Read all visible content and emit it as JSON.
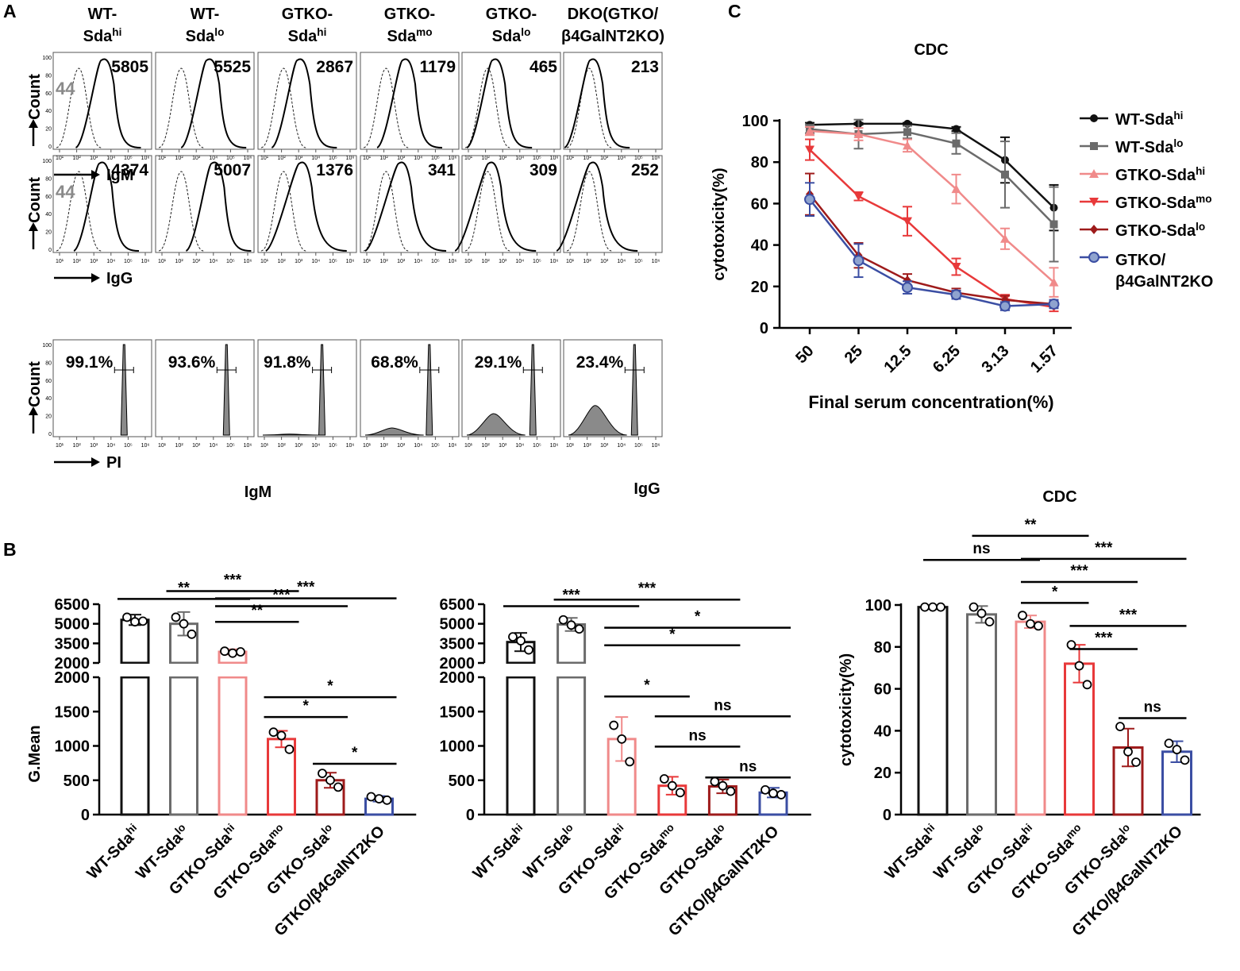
{
  "panel_labels": {
    "a": "A",
    "b": "B",
    "c": "C"
  },
  "colors": {
    "wt_hi": "#111111",
    "wt_lo": "#6b6b6b",
    "gtko_hi": "#f08a8a",
    "gtko_mo": "#e8393a",
    "gtko_lo": "#9e1b1b",
    "dko": "#3b4ea3",
    "dko_marker": "#8fa3cf",
    "histogram_fill": "#8a8a8a"
  },
  "panelA": {
    "columns": [
      {
        "line1": "WT-",
        "base": "Sda",
        "sup": "hi"
      },
      {
        "line1": "WT-",
        "base": "Sda",
        "sup": "lo"
      },
      {
        "line1": "GTKO-",
        "base": "Sda",
        "sup": "hi"
      },
      {
        "line1": "GTKO-",
        "base": "Sda",
        "sup": "mo"
      },
      {
        "line1": "GTKO-",
        "base": "Sda",
        "sup": "lo"
      },
      {
        "line1": "DKO(GTKO/",
        "base": "β4GalNT2KO)",
        "sup": ""
      }
    ],
    "rows": [
      {
        "marker": "IgM",
        "ylabel": "Count",
        "control_value": "44",
        "values": [
          "5805",
          "5525",
          "2867",
          "1179",
          "465",
          "213"
        ]
      },
      {
        "marker": "IgG",
        "ylabel": "Count",
        "control_value": "44",
        "values": [
          "4374",
          "5007",
          "1376",
          "341",
          "309",
          "252"
        ]
      },
      {
        "marker": "PI",
        "ylabel": "Count",
        "control_value": "",
        "values": [
          "99.1%",
          "93.6%",
          "91.8%",
          "68.8%",
          "29.1%",
          "23.4%"
        ]
      }
    ],
    "axis_ticks": [
      "10¹",
      "10²",
      "10³",
      "10⁴",
      "10⁵",
      "10⁶"
    ],
    "y_ticks": [
      "100",
      "80",
      "60",
      "40",
      "20",
      "0"
    ]
  },
  "chart_data": [
    {
      "id": "C",
      "type": "line",
      "title": "CDC",
      "xlabel": "Final  serum concentration(%)",
      "ylabel": "cytotoxicity(%)",
      "categories": [
        "50",
        "25",
        "12.5",
        "6.25",
        "3.13",
        "1.57"
      ],
      "ylim": [
        0,
        100
      ],
      "yticks": [
        "0",
        "20",
        "40",
        "60",
        "80",
        "100"
      ],
      "series": [
        {
          "name": "WT-Sda",
          "sup": "hi",
          "marker": "circle",
          "color": "#111111",
          "values": [
            98,
            98.5,
            98.5,
            96,
            81,
            58
          ],
          "errors": [
            1,
            0.5,
            0.5,
            1,
            11,
            11
          ]
        },
        {
          "name": "WT-Sda",
          "sup": "lo",
          "marker": "square",
          "color": "#6b6b6b",
          "values": [
            96,
            93.5,
            94.5,
            89,
            74,
            50
          ],
          "errors": [
            2,
            7,
            3,
            5,
            16,
            18
          ]
        },
        {
          "name": "GTKO-Sda",
          "sup": "hi",
          "marker": "triangle",
          "color": "#f08a8a",
          "values": [
            95,
            93.5,
            88,
            67,
            43,
            22
          ],
          "errors": [
            2,
            3,
            3,
            7,
            5,
            7
          ]
        },
        {
          "name": "GTKO-Sda",
          "sup": "mo",
          "marker": "triangle-down",
          "color": "#e8393a",
          "values": [
            86,
            63.5,
            51.5,
            29.5,
            14,
            10
          ],
          "errors": [
            5,
            2,
            7,
            4,
            2,
            2
          ]
        },
        {
          "name": "GTKO-Sda",
          "sup": "lo",
          "marker": "diamond",
          "color": "#9e1b1b",
          "values": [
            64.5,
            35,
            23,
            17,
            13.5,
            11.5
          ],
          "errors": [
            10,
            6,
            3,
            2,
            2,
            2
          ]
        },
        {
          "name": "GTKO/",
          "name2": "β4GalNT2KO",
          "sup": "",
          "marker": "circle-filled",
          "color": "#3b4ea3",
          "values": [
            62,
            32.5,
            19.5,
            16,
            10.5,
            11.5
          ],
          "errors": [
            8,
            8,
            3,
            2,
            2,
            2
          ]
        }
      ]
    },
    {
      "id": "B-IgM",
      "type": "bar",
      "title": "IgM",
      "ylabel": "G.Mean",
      "categories": [
        {
          "base": "WT-Sda",
          "sup": "hi"
        },
        {
          "base": "WT-Sda",
          "sup": "lo"
        },
        {
          "base": "GTKO-Sda",
          "sup": "hi"
        },
        {
          "base": "GTKO-Sda",
          "sup": "mo"
        },
        {
          "base": "GTKO-Sda",
          "sup": "lo"
        },
        {
          "base": "GTKO/β4GalNT2KO",
          "sup": ""
        }
      ],
      "lower_ylim": [
        0,
        2000
      ],
      "lower_ticks": [
        "0",
        "500",
        "1000",
        "1500",
        "2000"
      ],
      "upper_ylim": [
        2000,
        6500
      ],
      "upper_ticks": [
        "2000",
        "3500",
        "5000",
        "6500"
      ],
      "values": [
        5300,
        5000,
        2850,
        1100,
        500,
        230
      ],
      "errors": [
        400,
        900,
        200,
        120,
        110,
        40
      ],
      "points": [
        [
          5500,
          5150,
          5200
        ],
        [
          5500,
          5000,
          4200
        ],
        [
          2900,
          2750,
          2850
        ],
        [
          1200,
          1150,
          950
        ],
        [
          600,
          500,
          400
        ],
        [
          260,
          230,
          210
        ]
      ],
      "significance": [
        {
          "from": 0,
          "to": 2,
          "label": "**",
          "y": 6900
        },
        {
          "from": 1,
          "to": 3,
          "label": "***",
          "y": 7500
        },
        {
          "from": 2,
          "to": 5,
          "label": "***",
          "y": 6950
        },
        {
          "from": 2,
          "to": 4,
          "label": "***",
          "y": 6350
        },
        {
          "from": 2,
          "to": 3,
          "label": "**",
          "y": 5150
        },
        {
          "from": 3,
          "to": 5,
          "label": "*",
          "y": 1710
        },
        {
          "from": 3,
          "to": 4,
          "label": "*",
          "y": 1420
        },
        {
          "from": 4,
          "to": 5,
          "label": "*",
          "y": 740
        }
      ]
    },
    {
      "id": "B-IgG",
      "type": "bar",
      "title": "IgG",
      "ylabel": "",
      "categories": [
        {
          "base": "WT-Sda",
          "sup": "hi"
        },
        {
          "base": "WT-Sda",
          "sup": "lo"
        },
        {
          "base": "GTKO-Sda",
          "sup": "hi"
        },
        {
          "base": "GTKO-Sda",
          "sup": "mo"
        },
        {
          "base": "GTKO-Sda",
          "sup": "lo"
        },
        {
          "base": "GTKO/β4GalNT2KO",
          "sup": ""
        }
      ],
      "lower_ylim": [
        0,
        2000
      ],
      "lower_ticks": [
        "0",
        "500",
        "1000",
        "1500",
        "2000"
      ],
      "upper_ylim": [
        2000,
        6500
      ],
      "upper_ticks": [
        "2000",
        "3500",
        "5000",
        "6500"
      ],
      "values": [
        3600,
        4950,
        1100,
        420,
        410,
        320
      ],
      "errors": [
        700,
        500,
        320,
        130,
        100,
        70
      ],
      "points": [
        [
          4000,
          3700,
          3000
        ],
        [
          5300,
          4900,
          4600
        ],
        [
          1300,
          1100,
          770
        ],
        [
          520,
          420,
          320
        ],
        [
          480,
          420,
          340
        ],
        [
          360,
          310,
          290
        ]
      ],
      "significance": [
        {
          "from": 0,
          "to": 2,
          "label": "***",
          "y": 6350
        },
        {
          "from": 1,
          "to": 4,
          "label": "***",
          "y": 6850
        },
        {
          "from": 2,
          "to": 5,
          "label": "*",
          "y": 4700
        },
        {
          "from": 2,
          "to": 4,
          "label": "*",
          "y": 3350
        },
        {
          "from": 2,
          "to": 3,
          "label": "*",
          "y": 1720
        },
        {
          "from": 3,
          "to": 5,
          "label": "ns",
          "y": 1430
        },
        {
          "from": 3,
          "to": 4,
          "label": "ns",
          "y": 990
        },
        {
          "from": 4,
          "to": 5,
          "label": "ns",
          "y": 540
        }
      ]
    },
    {
      "id": "B-CDC",
      "type": "bar",
      "title": "CDC",
      "ylabel": "cytotoxicity(%)",
      "categories": [
        {
          "base": "WT-Sda",
          "sup": "hi"
        },
        {
          "base": "WT-Sda",
          "sup": "lo"
        },
        {
          "base": "GTKO-Sda",
          "sup": "hi"
        },
        {
          "base": "GTKO-Sda",
          "sup": "mo"
        },
        {
          "base": "GTKO-Sda",
          "sup": "lo"
        },
        {
          "base": "GTKO/β4GalNT2KO",
          "sup": ""
        }
      ],
      "ylim": [
        0,
        100
      ],
      "yticks": [
        "0",
        "20",
        "40",
        "60",
        "80",
        "100"
      ],
      "values": [
        99,
        95.5,
        92,
        72,
        32,
        30
      ],
      "errors": [
        0.5,
        4,
        3,
        9,
        9,
        5
      ],
      "points": [
        [
          99,
          99,
          99
        ],
        [
          99,
          96,
          92
        ],
        [
          95,
          91,
          90
        ],
        [
          81,
          71,
          62
        ],
        [
          42,
          30,
          25
        ],
        [
          34,
          31,
          26
        ]
      ],
      "significance": [
        {
          "from": 0,
          "to": 2,
          "label": "ns",
          "y": 121.5
        },
        {
          "from": 1,
          "to": 3,
          "label": "**",
          "y": 133
        },
        {
          "from": 2,
          "to": 5,
          "label": "***",
          "y": 122
        },
        {
          "from": 2,
          "to": 4,
          "label": "***",
          "y": 111
        },
        {
          "from": 2,
          "to": 3,
          "label": "*",
          "y": 101
        },
        {
          "from": 3,
          "to": 5,
          "label": "***",
          "y": 90
        },
        {
          "from": 3,
          "to": 4,
          "label": "***",
          "y": 79
        },
        {
          "from": 4,
          "to": 5,
          "label": "ns",
          "y": 46
        }
      ]
    }
  ]
}
